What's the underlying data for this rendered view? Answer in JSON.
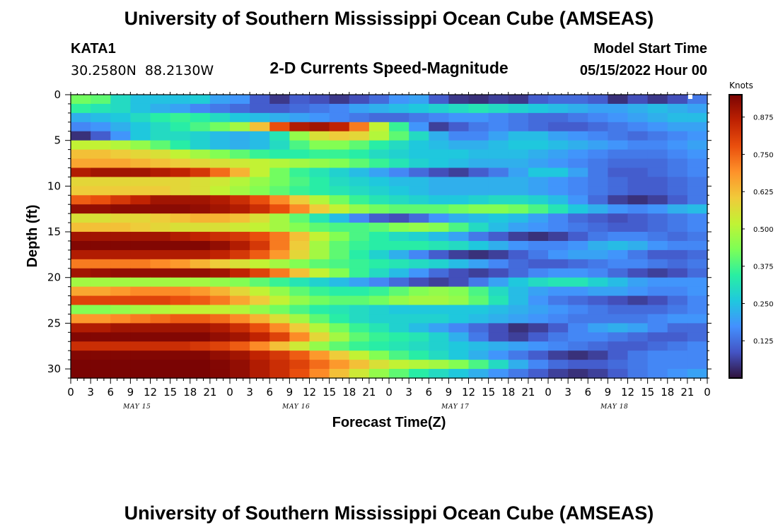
{
  "header": {
    "title": "University of Southern Mississippi Ocean Cube (AMSEAS)",
    "title_repeat": "University of Southern Mississippi Ocean Cube (AMSEAS)",
    "station_id": "KATA1",
    "station_coords": "30.2580N  88.2130W",
    "product": "2-D Currents Speed-Magnitude",
    "model_start_label": "Model Start Time",
    "model_start_value": "05/15/2022 Hour 00"
  },
  "colorbar": {
    "unit": "Knots",
    "ticks": [
      "0.125",
      "0.250",
      "0.375",
      "0.500",
      "0.625",
      "0.750",
      "0.875"
    ],
    "tick_values": [
      0.125,
      0.25,
      0.375,
      0.5,
      0.625,
      0.75,
      0.875
    ],
    "range": [
      0.0,
      0.95
    ],
    "stops": [
      "#30123b",
      "#4454c4",
      "#4490fe",
      "#1fc8de",
      "#29efa2",
      "#7dff56",
      "#c1f334",
      "#f1ca3a",
      "#fe922a",
      "#ea4f0d",
      "#be2102",
      "#7a0403"
    ]
  },
  "chart_data": {
    "type": "heatmap",
    "title": "2-D Currents Speed-Magnitude",
    "xlabel": "Forecast Time(Z)",
    "ylabel": "Depth (ft)",
    "unit": "Knots",
    "x_range_hours": [
      0,
      96
    ],
    "ylim": [
      31,
      0
    ],
    "x_tick_labels": [
      "0",
      "3",
      "6",
      "9",
      "12",
      "15",
      "18",
      "21",
      "0",
      "3",
      "6",
      "9",
      "12",
      "15",
      "18",
      "21",
      "0",
      "3",
      "6",
      "9",
      "12",
      "15",
      "18",
      "21",
      "0",
      "3",
      "6",
      "9",
      "12",
      "15",
      "18",
      "21",
      "0"
    ],
    "y_tick_labels": [
      "0",
      "5",
      "10",
      "15",
      "20",
      "25",
      "30"
    ],
    "y_tick_values": [
      0,
      5,
      10,
      15,
      20,
      25,
      30
    ],
    "date_labels": [
      "MAY 15",
      "MAY 16",
      "MAY 17",
      "MAY 18"
    ],
    "depth_levels": [
      0,
      1,
      2,
      3,
      4,
      5,
      6,
      7,
      8,
      9,
      10,
      11,
      12,
      13,
      14,
      15,
      16,
      17,
      18,
      19,
      20,
      21,
      22,
      23,
      24,
      25,
      26,
      27,
      28,
      29,
      30,
      31
    ],
    "time_hours": [
      0,
      3,
      6,
      9,
      12,
      15,
      18,
      21,
      24,
      27,
      30,
      33,
      36,
      39,
      42,
      45,
      48,
      51,
      54,
      57,
      60,
      63,
      66,
      69,
      72,
      75,
      78,
      81,
      84,
      87,
      90,
      93,
      96
    ],
    "values": [
      [
        0.42,
        0.4,
        0.3,
        0.25,
        0.25,
        0.25,
        0.27,
        0.2,
        0.18,
        0.1,
        0.05,
        0.1,
        0.08,
        0.05,
        0.08,
        0.12,
        0.18,
        0.2,
        0.1,
        0.05,
        0.04,
        0.06,
        0.05,
        0.1,
        0.12,
        0.12,
        0.1,
        0.04,
        0.08,
        0.05,
        0.08,
        0.14
      ],
      [
        0.35,
        0.32,
        0.3,
        0.25,
        0.22,
        0.2,
        0.16,
        0.14,
        0.12,
        0.1,
        0.1,
        0.12,
        0.14,
        0.16,
        0.2,
        0.22,
        0.24,
        0.26,
        0.28,
        0.3,
        0.32,
        0.3,
        0.28,
        0.26,
        0.24,
        0.22,
        0.2,
        0.2,
        0.22,
        0.24,
        0.22,
        0.2
      ],
      [
        0.22,
        0.24,
        0.26,
        0.3,
        0.34,
        0.36,
        0.34,
        0.3,
        0.26,
        0.24,
        0.22,
        0.2,
        0.18,
        0.16,
        0.14,
        0.12,
        0.12,
        0.14,
        0.16,
        0.18,
        0.18,
        0.16,
        0.14,
        0.12,
        0.12,
        0.14,
        0.16,
        0.18,
        0.2,
        0.22,
        0.24,
        0.24
      ],
      [
        0.16,
        0.18,
        0.22,
        0.26,
        0.3,
        0.34,
        0.38,
        0.42,
        0.48,
        0.62,
        0.78,
        0.88,
        0.9,
        0.86,
        0.72,
        0.52,
        0.36,
        0.18,
        0.06,
        0.1,
        0.14,
        0.16,
        0.14,
        0.12,
        0.1,
        0.1,
        0.12,
        0.14,
        0.16,
        0.18,
        0.2,
        0.2
      ],
      [
        0.04,
        0.1,
        0.18,
        0.26,
        0.3,
        0.3,
        0.28,
        0.24,
        0.22,
        0.24,
        0.32,
        0.46,
        0.56,
        0.6,
        0.58,
        0.5,
        0.4,
        0.3,
        0.22,
        0.16,
        0.16,
        0.2,
        0.24,
        0.24,
        0.2,
        0.18,
        0.16,
        0.14,
        0.12,
        0.14,
        0.16,
        0.18
      ],
      [
        0.52,
        0.52,
        0.5,
        0.46,
        0.4,
        0.34,
        0.28,
        0.24,
        0.22,
        0.24,
        0.3,
        0.38,
        0.44,
        0.44,
        0.4,
        0.34,
        0.3,
        0.26,
        0.24,
        0.22,
        0.22,
        0.24,
        0.26,
        0.26,
        0.24,
        0.22,
        0.2,
        0.18,
        0.16,
        0.16,
        0.18,
        0.2
      ],
      [
        0.62,
        0.62,
        0.6,
        0.58,
        0.56,
        0.52,
        0.48,
        0.44,
        0.4,
        0.36,
        0.34,
        0.34,
        0.36,
        0.36,
        0.34,
        0.3,
        0.28,
        0.26,
        0.26,
        0.26,
        0.24,
        0.24,
        0.24,
        0.22,
        0.2,
        0.18,
        0.16,
        0.14,
        0.14,
        0.14,
        0.16,
        0.18
      ],
      [
        0.66,
        0.66,
        0.66,
        0.64,
        0.62,
        0.6,
        0.58,
        0.56,
        0.54,
        0.52,
        0.5,
        0.48,
        0.46,
        0.44,
        0.4,
        0.36,
        0.32,
        0.28,
        0.26,
        0.24,
        0.22,
        0.22,
        0.22,
        0.2,
        0.18,
        0.16,
        0.14,
        0.12,
        0.12,
        0.12,
        0.14,
        0.16
      ],
      [
        0.88,
        0.9,
        0.9,
        0.9,
        0.88,
        0.86,
        0.82,
        0.74,
        0.64,
        0.52,
        0.42,
        0.36,
        0.32,
        0.28,
        0.24,
        0.2,
        0.16,
        0.12,
        0.08,
        0.06,
        0.1,
        0.14,
        0.2,
        0.26,
        0.26,
        0.2,
        0.14,
        0.1,
        0.1,
        0.12,
        0.14,
        0.16
      ],
      [
        0.58,
        0.58,
        0.58,
        0.58,
        0.58,
        0.58,
        0.56,
        0.54,
        0.5,
        0.46,
        0.42,
        0.38,
        0.34,
        0.3,
        0.28,
        0.26,
        0.24,
        0.24,
        0.22,
        0.22,
        0.22,
        0.22,
        0.22,
        0.2,
        0.18,
        0.16,
        0.14,
        0.12,
        0.1,
        0.1,
        0.12,
        0.14
      ],
      [
        0.6,
        0.6,
        0.6,
        0.6,
        0.6,
        0.58,
        0.56,
        0.52,
        0.48,
        0.44,
        0.4,
        0.36,
        0.34,
        0.32,
        0.3,
        0.28,
        0.26,
        0.24,
        0.22,
        0.22,
        0.22,
        0.22,
        0.22,
        0.2,
        0.18,
        0.16,
        0.14,
        0.12,
        0.1,
        0.1,
        0.12,
        0.14
      ],
      [
        0.76,
        0.78,
        0.82,
        0.86,
        0.9,
        0.9,
        0.9,
        0.88,
        0.84,
        0.78,
        0.7,
        0.6,
        0.5,
        0.42,
        0.36,
        0.32,
        0.3,
        0.28,
        0.26,
        0.26,
        0.28,
        0.3,
        0.3,
        0.28,
        0.24,
        0.18,
        0.12,
        0.06,
        0.04,
        0.06,
        0.1,
        0.14
      ],
      [
        0.92,
        0.92,
        0.93,
        0.93,
        0.93,
        0.93,
        0.92,
        0.9,
        0.88,
        0.84,
        0.78,
        0.7,
        0.6,
        0.52,
        0.46,
        0.42,
        0.4,
        0.4,
        0.4,
        0.42,
        0.44,
        0.44,
        0.42,
        0.38,
        0.32,
        0.26,
        0.22,
        0.18,
        0.16,
        0.18,
        0.22,
        0.24
      ],
      [
        0.56,
        0.56,
        0.58,
        0.58,
        0.6,
        0.62,
        0.64,
        0.64,
        0.62,
        0.56,
        0.48,
        0.4,
        0.32,
        0.24,
        0.16,
        0.1,
        0.08,
        0.12,
        0.18,
        0.22,
        0.24,
        0.26,
        0.24,
        0.2,
        0.16,
        0.12,
        0.1,
        0.08,
        0.1,
        0.12,
        0.14,
        0.16
      ],
      [
        0.62,
        0.62,
        0.62,
        0.6,
        0.58,
        0.56,
        0.56,
        0.56,
        0.54,
        0.52,
        0.48,
        0.44,
        0.4,
        0.38,
        0.38,
        0.4,
        0.44,
        0.46,
        0.44,
        0.38,
        0.3,
        0.24,
        0.2,
        0.18,
        0.16,
        0.14,
        0.12,
        0.1,
        0.1,
        0.12,
        0.14,
        0.16
      ],
      [
        0.9,
        0.9,
        0.9,
        0.9,
        0.9,
        0.88,
        0.86,
        0.84,
        0.82,
        0.78,
        0.72,
        0.62,
        0.52,
        0.44,
        0.38,
        0.34,
        0.3,
        0.28,
        0.24,
        0.2,
        0.14,
        0.1,
        0.06,
        0.04,
        0.06,
        0.1,
        0.14,
        0.16,
        0.16,
        0.14,
        0.12,
        0.14
      ],
      [
        0.94,
        0.94,
        0.94,
        0.94,
        0.94,
        0.94,
        0.94,
        0.92,
        0.88,
        0.82,
        0.72,
        0.6,
        0.48,
        0.4,
        0.36,
        0.34,
        0.34,
        0.34,
        0.32,
        0.3,
        0.26,
        0.22,
        0.18,
        0.16,
        0.16,
        0.18,
        0.22,
        0.24,
        0.22,
        0.18,
        0.16,
        0.16
      ],
      [
        0.88,
        0.88,
        0.88,
        0.88,
        0.88,
        0.88,
        0.88,
        0.86,
        0.82,
        0.76,
        0.68,
        0.58,
        0.48,
        0.4,
        0.34,
        0.28,
        0.22,
        0.16,
        0.1,
        0.06,
        0.04,
        0.06,
        0.1,
        0.14,
        0.18,
        0.2,
        0.2,
        0.18,
        0.14,
        0.1,
        0.1,
        0.12
      ],
      [
        0.72,
        0.72,
        0.72,
        0.72,
        0.7,
        0.68,
        0.64,
        0.6,
        0.56,
        0.52,
        0.48,
        0.44,
        0.4,
        0.38,
        0.36,
        0.34,
        0.32,
        0.3,
        0.28,
        0.24,
        0.2,
        0.16,
        0.12,
        0.1,
        0.1,
        0.12,
        0.14,
        0.16,
        0.16,
        0.14,
        0.12,
        0.14
      ],
      [
        0.9,
        0.91,
        0.92,
        0.92,
        0.92,
        0.92,
        0.92,
        0.9,
        0.86,
        0.8,
        0.72,
        0.62,
        0.52,
        0.44,
        0.36,
        0.3,
        0.24,
        0.18,
        0.12,
        0.08,
        0.06,
        0.08,
        0.12,
        0.16,
        0.18,
        0.18,
        0.16,
        0.12,
        0.08,
        0.06,
        0.08,
        0.12
      ],
      [
        0.48,
        0.48,
        0.48,
        0.48,
        0.48,
        0.48,
        0.48,
        0.46,
        0.44,
        0.4,
        0.36,
        0.32,
        0.28,
        0.24,
        0.2,
        0.16,
        0.12,
        0.08,
        0.06,
        0.08,
        0.14,
        0.2,
        0.26,
        0.3,
        0.32,
        0.32,
        0.28,
        0.24,
        0.2,
        0.18,
        0.18,
        0.18
      ],
      [
        0.66,
        0.66,
        0.68,
        0.7,
        0.7,
        0.7,
        0.68,
        0.64,
        0.58,
        0.52,
        0.46,
        0.4,
        0.36,
        0.34,
        0.34,
        0.36,
        0.4,
        0.44,
        0.46,
        0.44,
        0.38,
        0.3,
        0.24,
        0.2,
        0.18,
        0.18,
        0.2,
        0.2,
        0.18,
        0.16,
        0.16,
        0.18
      ],
      [
        0.8,
        0.8,
        0.8,
        0.8,
        0.8,
        0.78,
        0.76,
        0.72,
        0.66,
        0.6,
        0.52,
        0.46,
        0.42,
        0.4,
        0.4,
        0.42,
        0.46,
        0.48,
        0.48,
        0.46,
        0.4,
        0.32,
        0.24,
        0.18,
        0.14,
        0.12,
        0.1,
        0.08,
        0.06,
        0.08,
        0.12,
        0.16
      ],
      [
        0.44,
        0.44,
        0.46,
        0.48,
        0.5,
        0.52,
        0.52,
        0.52,
        0.5,
        0.46,
        0.42,
        0.38,
        0.34,
        0.32,
        0.3,
        0.28,
        0.26,
        0.26,
        0.26,
        0.26,
        0.26,
        0.24,
        0.22,
        0.2,
        0.18,
        0.16,
        0.14,
        0.12,
        0.12,
        0.12,
        0.14,
        0.16
      ],
      [
        0.68,
        0.68,
        0.7,
        0.72,
        0.74,
        0.76,
        0.76,
        0.74,
        0.7,
        0.64,
        0.56,
        0.48,
        0.4,
        0.34,
        0.3,
        0.28,
        0.28,
        0.28,
        0.28,
        0.26,
        0.24,
        0.22,
        0.2,
        0.18,
        0.16,
        0.14,
        0.14,
        0.14,
        0.14,
        0.16,
        0.18,
        0.18
      ],
      [
        0.88,
        0.88,
        0.9,
        0.9,
        0.9,
        0.9,
        0.9,
        0.88,
        0.84,
        0.78,
        0.7,
        0.6,
        0.5,
        0.42,
        0.36,
        0.32,
        0.28,
        0.24,
        0.2,
        0.16,
        0.12,
        0.08,
        0.04,
        0.06,
        0.1,
        0.16,
        0.2,
        0.22,
        0.2,
        0.16,
        0.12,
        0.12
      ],
      [
        0.94,
        0.94,
        0.94,
        0.94,
        0.94,
        0.94,
        0.94,
        0.92,
        0.9,
        0.86,
        0.8,
        0.7,
        0.58,
        0.48,
        0.4,
        0.36,
        0.34,
        0.32,
        0.28,
        0.22,
        0.14,
        0.08,
        0.06,
        0.1,
        0.14,
        0.16,
        0.16,
        0.14,
        0.12,
        0.1,
        0.1,
        0.12
      ],
      [
        0.84,
        0.84,
        0.84,
        0.84,
        0.84,
        0.84,
        0.82,
        0.8,
        0.76,
        0.7,
        0.62,
        0.54,
        0.46,
        0.4,
        0.36,
        0.34,
        0.32,
        0.3,
        0.28,
        0.26,
        0.24,
        0.22,
        0.2,
        0.18,
        0.16,
        0.14,
        0.12,
        0.1,
        0.1,
        0.12,
        0.14,
        0.16
      ],
      [
        0.94,
        0.94,
        0.94,
        0.94,
        0.94,
        0.94,
        0.94,
        0.92,
        0.9,
        0.86,
        0.82,
        0.76,
        0.68,
        0.6,
        0.52,
        0.44,
        0.38,
        0.34,
        0.3,
        0.26,
        0.22,
        0.18,
        0.14,
        0.1,
        0.06,
        0.04,
        0.06,
        0.1,
        0.14,
        0.16,
        0.16,
        0.16
      ],
      [
        0.95,
        0.95,
        0.95,
        0.95,
        0.95,
        0.95,
        0.95,
        0.94,
        0.92,
        0.88,
        0.84,
        0.8,
        0.74,
        0.68,
        0.62,
        0.56,
        0.52,
        0.5,
        0.48,
        0.44,
        0.38,
        0.3,
        0.22,
        0.16,
        0.12,
        0.1,
        0.1,
        0.12,
        0.14,
        0.16,
        0.16,
        0.16
      ],
      [
        0.95,
        0.95,
        0.95,
        0.95,
        0.95,
        0.95,
        0.95,
        0.94,
        0.92,
        0.88,
        0.84,
        0.78,
        0.7,
        0.62,
        0.54,
        0.46,
        0.4,
        0.34,
        0.3,
        0.26,
        0.22,
        0.18,
        0.14,
        0.1,
        0.06,
        0.04,
        0.06,
        0.1,
        0.14,
        0.16,
        0.18,
        0.2
      ],
      [
        0.82,
        0.82,
        0.84,
        0.86,
        0.88,
        0.88,
        0.86,
        0.82,
        0.76,
        0.68,
        0.6,
        0.52,
        0.46,
        0.42,
        0.4,
        0.38,
        0.38,
        0.38,
        0.36,
        0.34,
        0.3,
        0.26,
        0.22,
        0.18,
        0.16,
        0.14,
        0.14,
        0.14,
        0.16,
        0.18,
        0.2,
        0.22
      ]
    ]
  }
}
